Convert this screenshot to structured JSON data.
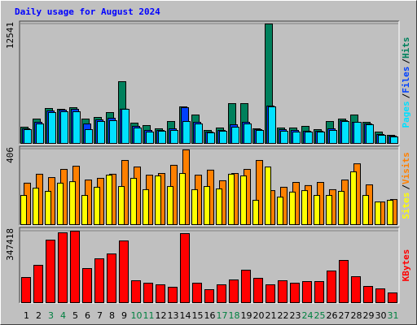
{
  "chart_data": [
    {
      "type": "bar",
      "title": "Daily usage for August 2024",
      "ylim": [
        0,
        12541
      ],
      "yticks": [
        12541
      ],
      "legend_separator": "/",
      "series": [
        {
          "name": "Hits",
          "color": "#00805c",
          "values": [
            1706,
            2559,
            3668,
            3583,
            3754,
            2559,
            2730,
            3242,
            6484,
            2133,
            1877,
            1536,
            2303,
            3839,
            2986,
            1365,
            1621,
            4180,
            4180,
            1536,
            12541,
            1621,
            1621,
            1792,
            1450,
            2303,
            2559,
            2986,
            2218,
            1194,
            853
          ]
        },
        {
          "name": "Files",
          "color": "#0040ff",
          "values": [
            1536,
            2218,
            3412,
            3498,
            3583,
            2047,
            2474,
            2645,
            3600,
            1792,
            1365,
            1365,
            1536,
            3754,
            2218,
            1194,
            1365,
            1962,
            2218,
            1450,
            3924,
            1450,
            1365,
            1280,
            1280,
            1536,
            2389,
            2218,
            2047,
            938,
            768
          ]
        },
        {
          "name": "Pages",
          "color": "#00e0ff",
          "values": [
            1450,
            2047,
            3242,
            3327,
            3327,
            1450,
            2303,
            2389,
            3583,
            1621,
            1194,
            1280,
            1365,
            2303,
            2047,
            1109,
            1280,
            1706,
            2047,
            1365,
            3839,
            1280,
            1194,
            1194,
            1194,
            1365,
            2303,
            2218,
            1962,
            853,
            682
          ]
        }
      ]
    },
    {
      "type": "bar",
      "ylim": [
        0,
        406
      ],
      "yticks": [
        406
      ],
      "legend_separator": "/",
      "series": [
        {
          "name": "Visits",
          "color": "#ff8000",
          "values": [
            223,
            271,
            253,
            297,
            314,
            240,
            249,
            271,
            345,
            310,
            266,
            275,
            319,
            402,
            266,
            293,
            236,
            275,
            297,
            345,
            183,
            201,
            227,
            210,
            227,
            188,
            240,
            327,
            214,
            122,
            135
          ]
        },
        {
          "name": "Sites",
          "color": "#ffff00",
          "values": [
            157,
            196,
            179,
            223,
            231,
            157,
            201,
            266,
            205,
            249,
            188,
            262,
            205,
            275,
            188,
            205,
            192,
            271,
            262,
            131,
            310,
            148,
            175,
            183,
            157,
            157,
            179,
            284,
            157,
            122,
            131
          ]
        }
      ]
    },
    {
      "type": "bar",
      "ylim": [
        0,
        347418
      ],
      "yticks": [
        347418
      ],
      "categories": [
        "1",
        "2",
        "3",
        "4",
        "5",
        "6",
        "7",
        "8",
        "9",
        "10",
        "11",
        "12",
        "13",
        "14",
        "15",
        "16",
        "17",
        "18",
        "19",
        "20",
        "21",
        "22",
        "23",
        "24",
        "25",
        "26",
        "27",
        "28",
        "29",
        "30",
        "31"
      ],
      "category_colors": [
        "#000000",
        "#000000",
        "#008040",
        "#008040",
        "#000000",
        "#000000",
        "#000000",
        "#000000",
        "#000000",
        "#008040",
        "#008040",
        "#000000",
        "#000000",
        "#000000",
        "#000000",
        "#000000",
        "#008040",
        "#008040",
        "#000000",
        "#000000",
        "#000000",
        "#000000",
        "#000000",
        "#008040",
        "#008040",
        "#000000",
        "#000000",
        "#000000",
        "#000000",
        "#000000",
        "#008040"
      ],
      "series": [
        {
          "name": "KBytes",
          "color": "#ff0000",
          "values": [
            122388,
            181608,
            303996,
            339528,
            347418,
            165816,
            213192,
            236880,
            300048,
            106596,
            94752,
            86856,
            75012,
            335580,
            94752,
            63168,
            86856,
            110544,
            157920,
            118440,
            86856,
            106596,
            94752,
            102648,
            102648,
            153972,
            205296,
            126336,
            78960,
            67116,
            47376
          ]
        }
      ]
    }
  ]
}
